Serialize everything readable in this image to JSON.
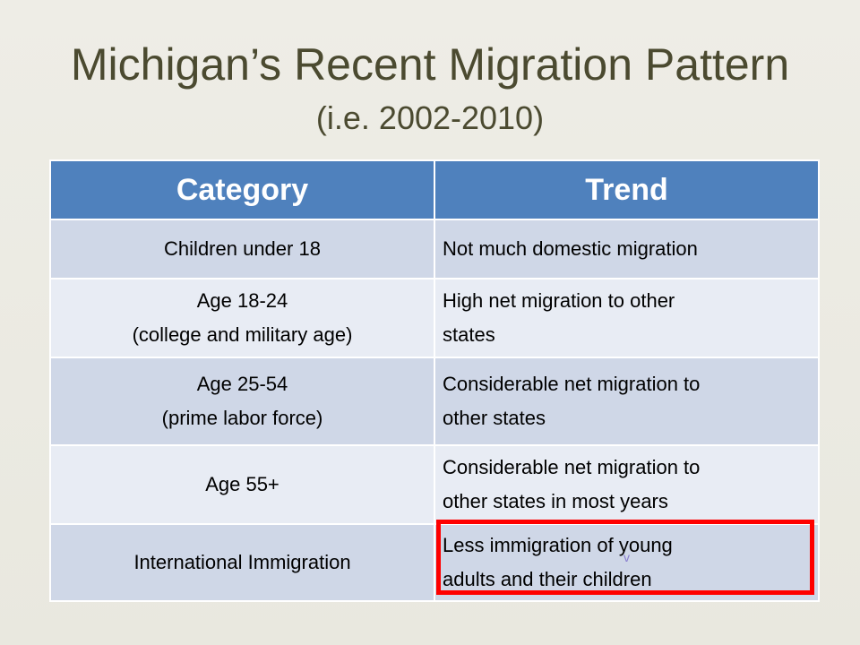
{
  "slide": {
    "title": "Michigan’s Recent Migration Pattern",
    "subtitle": "(i.e. 2002-2010)"
  },
  "table": {
    "headers": [
      "Category",
      "Trend"
    ],
    "rows": [
      {
        "category": [
          "Children under 18"
        ],
        "trend": [
          "Not much domestic migration"
        ]
      },
      {
        "category": [
          "Age 18-24",
          "(college and military age)"
        ],
        "trend": [
          "High net migration to other",
          "states"
        ]
      },
      {
        "category": [
          "Age 25-54",
          "(prime labor force)"
        ],
        "trend": [
          "Considerable net migration to",
          "other states"
        ]
      },
      {
        "category": [
          "Age 55+"
        ],
        "trend": [
          "Considerable net migration to",
          "other states in most years"
        ]
      },
      {
        "category": [
          "International Immigration"
        ],
        "trend": [
          "Less immigration of young",
          "adults and their children"
        ]
      }
    ]
  },
  "annotation": {
    "highlight_color": "#ff0000",
    "stray_mark": "v"
  },
  "colors": {
    "header_bg": "#4f81bd",
    "row_odd": "#cfd7e7",
    "row_even": "#e8ecf4",
    "title_text": "#4b4a30"
  }
}
